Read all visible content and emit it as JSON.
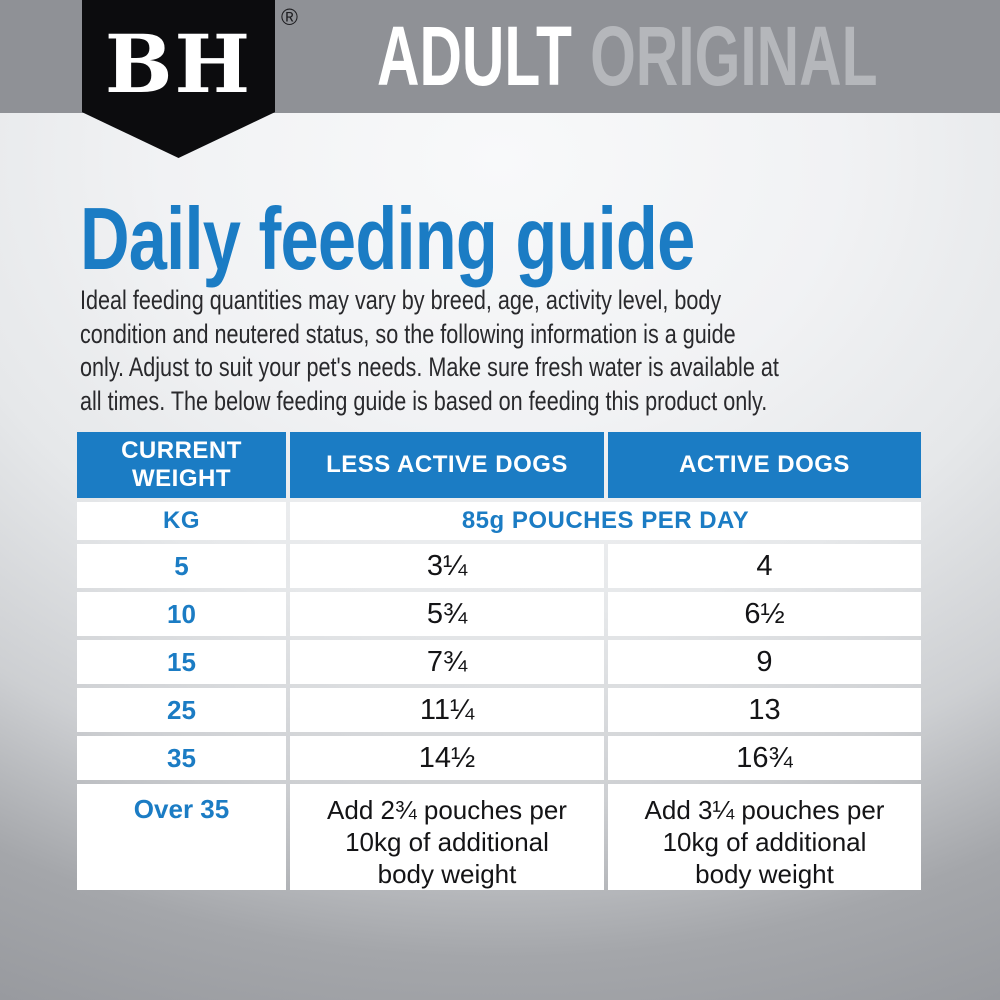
{
  "brand": {
    "logo_text": "BH",
    "registered_mark": "®",
    "product_line": "ADULT",
    "product_variant": "ORIGINAL"
  },
  "main": {
    "title": "Daily feeding guide",
    "intro": "Ideal feeding quantities may vary by breed, age, activity level, body\ncondition and neutered status, so the following information is a guide\nonly. Adjust to suit your pet's needs. Make sure fresh water is available at\nall times. The below feeding guide is based on feeding this product only."
  },
  "table": {
    "col_headers": [
      "CURRENT\nWEIGHT",
      "LESS ACTIVE DOGS",
      "ACTIVE DOGS"
    ],
    "unit_row": {
      "weight_unit": "KG",
      "serving_unit": "85g POUCHES PER DAY"
    },
    "rows": [
      {
        "weight": "5",
        "less_active": "3¼",
        "active": "4"
      },
      {
        "weight": "10",
        "less_active": "5¾",
        "active": "6½"
      },
      {
        "weight": "15",
        "less_active": "7¾",
        "active": "9"
      },
      {
        "weight": "25",
        "less_active": "11¼",
        "active": "13"
      },
      {
        "weight": "35",
        "less_active": "14½",
        "active": "16¾"
      },
      {
        "weight": "Over 35",
        "less_active": "Add 2¾ pouches per\n10kg of additional\nbody weight",
        "active": "Add 3¼ pouches per\n10kg of additional\nbody weight"
      }
    ]
  },
  "colors": {
    "accent_blue": "#1b7cc4",
    "bar_gray": "#8f9196",
    "logo_black": "#0c0c0e",
    "variant_gray": "#b5b7bb",
    "cell_white": "#ffffff",
    "body_text": "#29292c"
  }
}
